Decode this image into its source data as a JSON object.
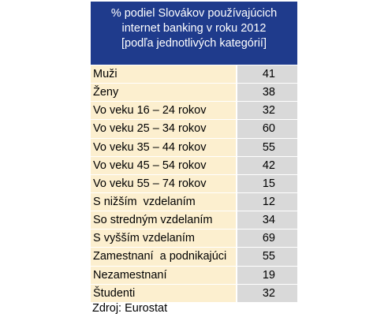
{
  "header": {
    "lines": [
      "% podiel Slovákov používajúcich",
      "internet banking  v roku 2012",
      "[podľa jednotlivých  kategórií]"
    ]
  },
  "table": {
    "rows": [
      [
        "Muži",
        41
      ],
      [
        "Ženy",
        38
      ],
      [
        "Vo veku 16 – 24 rokov",
        32
      ],
      [
        "Vo veku 25 – 34 rokov",
        60
      ],
      [
        "Vo veku 35 – 44 rokov",
        55
      ],
      [
        "Vo veku 45 – 54 rokov",
        42
      ],
      [
        "Vo veku 55 – 74 rokov",
        15
      ],
      [
        "S nižším  vzdelaním",
        12
      ],
      [
        "So stredným vzdelaním",
        34
      ],
      [
        "S vyšším vzdelaním",
        69
      ],
      [
        "Zamestnaní  a podnikajúci",
        55
      ],
      [
        "Nezamestnaní",
        19
      ],
      [
        "Študenti",
        32
      ]
    ]
  },
  "footer": {
    "source": "Zdroj: Eurostat"
  }
}
